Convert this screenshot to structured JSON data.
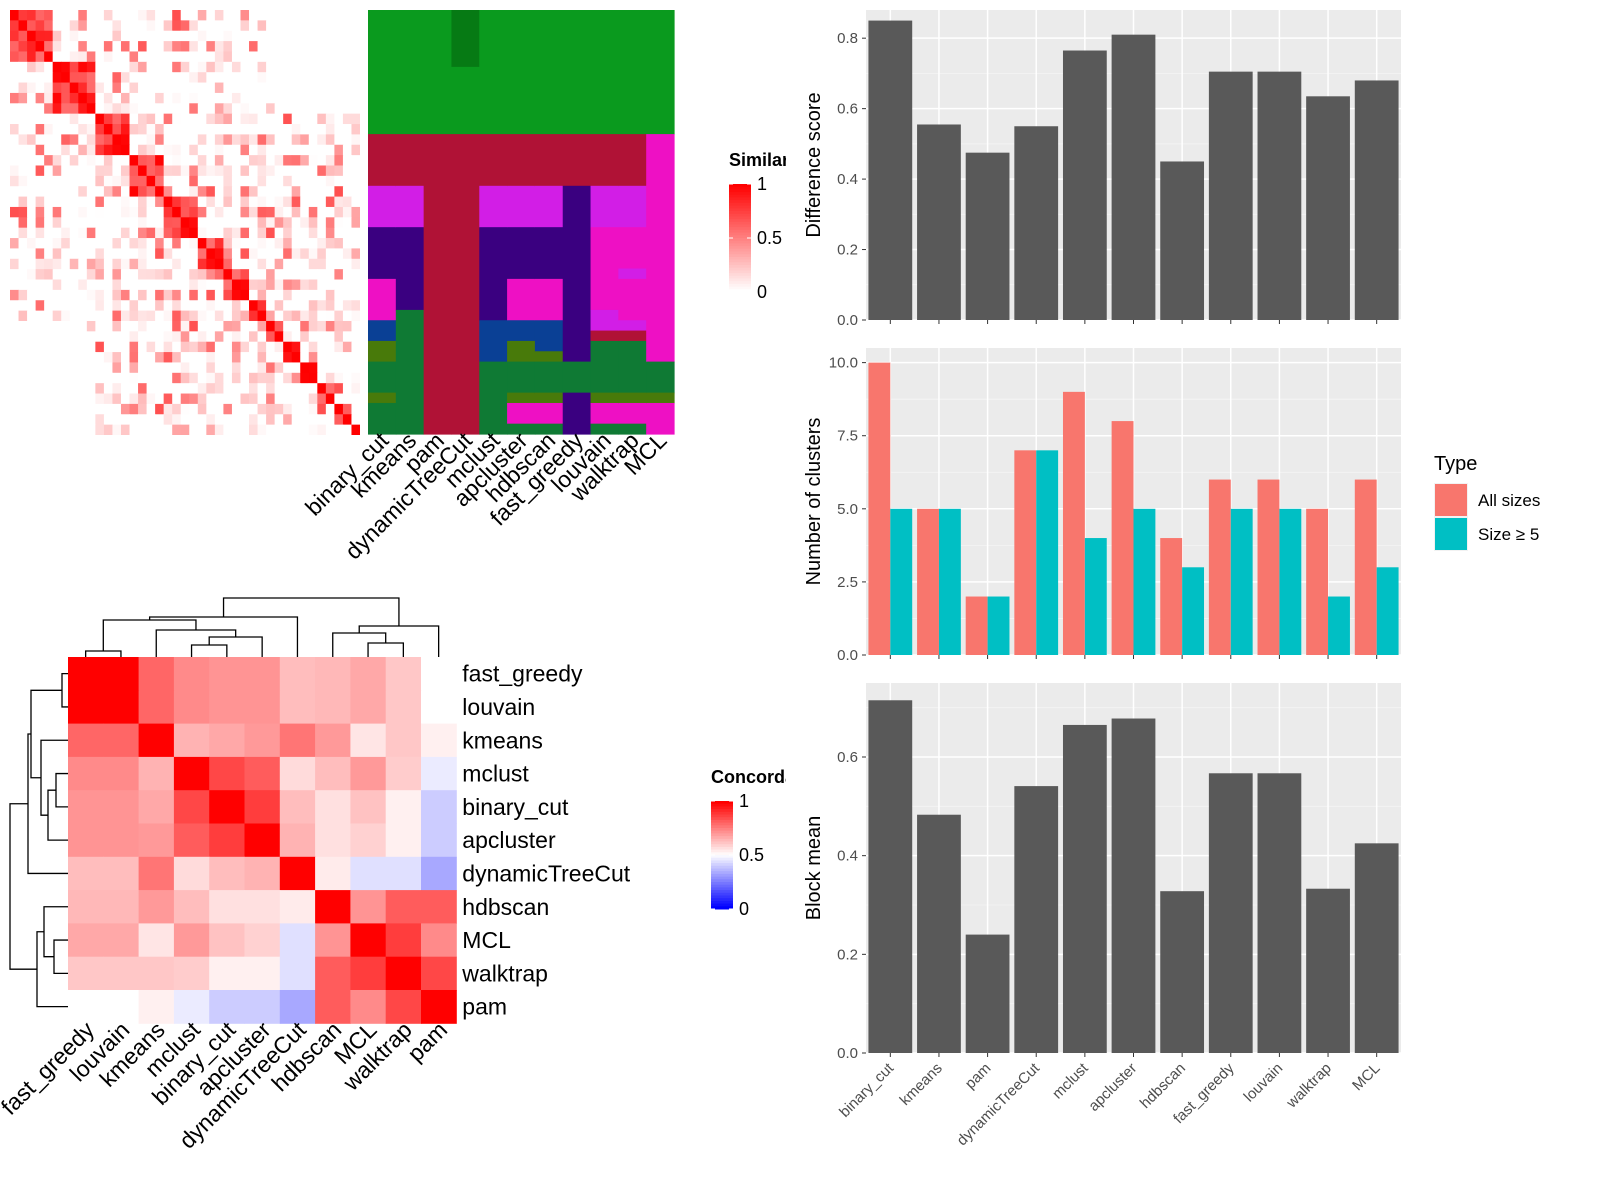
{
  "chart_data": [
    {
      "type": "heatmap",
      "name": "similarity-heatmap",
      "legend_title": "Similarity",
      "legend_ticks": [
        "1",
        "0.5",
        "0"
      ],
      "colorscale": [
        "#ffffff",
        "#ff0000"
      ],
      "n": 41,
      "blocks": [
        [
          0,
          5
        ],
        [
          5,
          10
        ],
        [
          10,
          14
        ],
        [
          14,
          18
        ],
        [
          18,
          22
        ],
        [
          22,
          25
        ],
        [
          25,
          28
        ],
        [
          28,
          30
        ],
        [
          30,
          32
        ],
        [
          32,
          34
        ],
        [
          34,
          36
        ],
        [
          36,
          38
        ],
        [
          38,
          40
        ],
        [
          40,
          41
        ]
      ]
    },
    {
      "type": "heatmap",
      "name": "cluster-assignment-heatmap",
      "columns": [
        "binary_cut",
        "kmeans",
        "pam",
        "dynamicTreeCut",
        "mclust",
        "apcluster",
        "hdbscan",
        "fast_greedy",
        "louvain",
        "walktrap",
        "MCL"
      ]
    },
    {
      "type": "heatmap",
      "name": "concordance-heatmap",
      "legend_title": "Concordance",
      "legend_ticks": [
        "1",
        "0.5",
        "0"
      ],
      "colorscale": [
        "#0000ff",
        "#ffffff",
        "#ff0000"
      ],
      "rows": [
        "fast_greedy",
        "louvain",
        "kmeans",
        "mclust",
        "binary_cut",
        "apcluster",
        "dynamicTreeCut",
        "hdbscan",
        "MCL",
        "walktrap",
        "pam"
      ],
      "columns": [
        "fast_greedy",
        "louvain",
        "kmeans",
        "mclust",
        "binary_cut",
        "apcluster",
        "dynamicTreeCut",
        "hdbscan",
        "MCL",
        "walktrap",
        "pam"
      ],
      "values": [
        [
          1.0,
          1.0,
          0.8,
          0.73,
          0.71,
          0.71,
          0.63,
          0.64,
          0.67,
          0.61,
          0.5
        ],
        [
          1.0,
          1.0,
          0.8,
          0.73,
          0.71,
          0.71,
          0.63,
          0.64,
          0.67,
          0.61,
          0.5
        ],
        [
          0.8,
          0.8,
          1.0,
          0.65,
          0.67,
          0.7,
          0.77,
          0.7,
          0.55,
          0.61,
          0.53
        ],
        [
          0.73,
          0.73,
          0.65,
          1.0,
          0.86,
          0.82,
          0.57,
          0.63,
          0.7,
          0.6,
          0.46
        ],
        [
          0.71,
          0.71,
          0.67,
          0.86,
          1.0,
          0.88,
          0.63,
          0.56,
          0.62,
          0.53,
          0.4
        ],
        [
          0.71,
          0.71,
          0.7,
          0.82,
          0.88,
          1.0,
          0.65,
          0.56,
          0.59,
          0.53,
          0.4
        ],
        [
          0.63,
          0.63,
          0.77,
          0.57,
          0.63,
          0.65,
          1.0,
          0.54,
          0.44,
          0.44,
          0.33
        ],
        [
          0.64,
          0.64,
          0.7,
          0.63,
          0.56,
          0.56,
          0.54,
          1.0,
          0.71,
          0.82,
          0.82
        ],
        [
          0.67,
          0.67,
          0.55,
          0.7,
          0.62,
          0.59,
          0.44,
          0.71,
          1.0,
          0.88,
          0.73
        ],
        [
          0.61,
          0.61,
          0.61,
          0.6,
          0.53,
          0.53,
          0.44,
          0.82,
          0.88,
          1.0,
          0.86
        ],
        [
          0.5,
          0.5,
          0.53,
          0.46,
          0.4,
          0.4,
          0.33,
          0.82,
          0.73,
          0.86,
          1.0
        ]
      ]
    },
    {
      "type": "bar",
      "name": "difference-score",
      "categories": [
        "binary_cut",
        "kmeans",
        "pam",
        "dynamicTreeCut",
        "mclust",
        "apcluster",
        "hdbscan",
        "fast_greedy",
        "louvain",
        "walktrap",
        "MCL"
      ],
      "values": [
        0.85,
        0.555,
        0.475,
        0.55,
        0.765,
        0.81,
        0.45,
        0.705,
        0.705,
        0.635,
        0.68
      ],
      "ylabel": "Difference score",
      "ylim": [
        0,
        0.88
      ],
      "yticks": [
        0.0,
        0.2,
        0.4,
        0.6,
        0.8
      ],
      "ytick_labels": [
        "0.0",
        "0.2",
        "0.4",
        "0.6",
        "0.8"
      ],
      "bar_color": "#595959",
      "grid": true
    },
    {
      "type": "bar",
      "name": "number-of-clusters",
      "categories": [
        "binary_cut",
        "kmeans",
        "pam",
        "dynamicTreeCut",
        "mclust",
        "apcluster",
        "hdbscan",
        "fast_greedy",
        "louvain",
        "walktrap",
        "MCL"
      ],
      "series": [
        {
          "name": "All sizes",
          "color": "#F8766D",
          "values": [
            10,
            5,
            2,
            7,
            9,
            8,
            4,
            6,
            6,
            5,
            6
          ]
        },
        {
          "name": "Size ≥ 5",
          "color": "#00BFC4",
          "values": [
            5,
            5,
            2,
            7,
            4,
            5,
            3,
            5,
            5,
            2,
            3
          ]
        }
      ],
      "ylabel": "Number of clusters",
      "ylim": [
        0,
        10.5
      ],
      "yticks": [
        0,
        2.5,
        5,
        7.5,
        10
      ],
      "ytick_labels": [
        "0.0",
        "2.5",
        "5.0",
        "7.5",
        "10.0"
      ],
      "legend_title": "Type",
      "legend_position": "right",
      "grid": true
    },
    {
      "type": "bar",
      "name": "block-mean",
      "categories": [
        "binary_cut",
        "kmeans",
        "pam",
        "dynamicTreeCut",
        "mclust",
        "apcluster",
        "hdbscan",
        "fast_greedy",
        "louvain",
        "walktrap",
        "MCL"
      ],
      "values": [
        0.715,
        0.483,
        0.24,
        0.541,
        0.665,
        0.678,
        0.328,
        0.567,
        0.567,
        0.333,
        0.425
      ],
      "ylabel": "Block mean",
      "ylim": [
        0,
        0.75
      ],
      "yticks": [
        0.0,
        0.2,
        0.4,
        0.6
      ],
      "ytick_labels": [
        "0.0",
        "0.2",
        "0.4",
        "0.6"
      ],
      "bar_color": "#595959",
      "grid": true
    }
  ]
}
